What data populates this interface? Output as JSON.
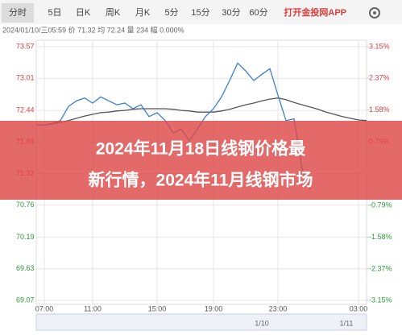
{
  "tabs": [
    "分时",
    "5日",
    "日K",
    "周K",
    "月K",
    "5分",
    "15分",
    "30分",
    "60分"
  ],
  "app_link": "打开金投网APP",
  "info": "2024/01/10/三05:59 价 71.32 均 72.24 量 234 幅 0.000%",
  "banner": {
    "line1": "2024年11月18日线钢价格最",
    "line2": "新行情，2024年11月线钢市场"
  },
  "navigator": {
    "labels": [
      "1/10",
      "1/11"
    ]
  },
  "chart_data": {
    "type": "line",
    "categories": [
      null,
      "07:00",
      null,
      null,
      null,
      null,
      null,
      "11:00",
      null,
      null,
      null,
      null,
      null,
      null,
      null,
      "15:00",
      null,
      null,
      null,
      null,
      null,
      null,
      "19:00",
      null,
      null,
      null,
      null,
      null,
      null,
      null,
      "23:00",
      null,
      null,
      null,
      null,
      null,
      null,
      null,
      null,
      null,
      "03:00",
      null
    ],
    "series": [
      {
        "name": "价",
        "color": "#3a7fd5",
        "values": [
          72.18,
          72.18,
          72.21,
          72.26,
          72.51,
          72.61,
          72.66,
          72.57,
          72.68,
          72.61,
          72.54,
          72.57,
          72.47,
          72.54,
          72.33,
          72.4,
          72.26,
          72.04,
          72.11,
          71.9,
          72.11,
          72.33,
          72.47,
          72.68,
          72.97,
          73.28,
          73.14,
          72.97,
          73.08,
          73.18,
          72.71,
          72.26,
          72.29,
          71.4,
          71.04,
          null,
          null,
          null,
          null,
          null,
          null,
          null
        ]
      },
      {
        "name": "均",
        "color": "#555555",
        "values": [
          72.18,
          72.18,
          72.2,
          72.23,
          72.26,
          72.3,
          72.34,
          72.37,
          72.4,
          72.41,
          72.43,
          72.44,
          72.46,
          72.47,
          72.47,
          72.47,
          72.47,
          72.46,
          72.44,
          72.43,
          72.41,
          72.41,
          72.41,
          72.43,
          72.46,
          72.5,
          72.54,
          72.57,
          72.61,
          72.64,
          72.66,
          72.63,
          72.58,
          72.54,
          72.5,
          72.46,
          72.41,
          72.37,
          72.33,
          72.3,
          72.27,
          72.26
        ]
      }
    ],
    "ylim": [
      69.07,
      73.57
    ],
    "yticks": [
      69.07,
      69.63,
      70.19,
      70.76,
      71.32,
      71.88,
      72.44,
      73.01,
      73.57
    ],
    "y2lim": [
      -3.15,
      3.15
    ],
    "y2ticks": [
      {
        "value": -3.15,
        "label": "-3.15%"
      },
      {
        "value": -2.37,
        "label": "-2.37%"
      },
      {
        "value": -1.58,
        "label": "-1.58%"
      },
      {
        "value": -0.79,
        "label": "-0.79%"
      },
      {
        "value": 0.79,
        "label": "0.79%"
      },
      {
        "value": 1.58,
        "label": "1.58%"
      },
      {
        "value": 2.37,
        "label": "2.37%"
      },
      {
        "value": 3.15,
        "label": "3.15%"
      }
    ],
    "grid": true,
    "up_color": "#e03c3c",
    "down_color": "#2a9a3a"
  }
}
